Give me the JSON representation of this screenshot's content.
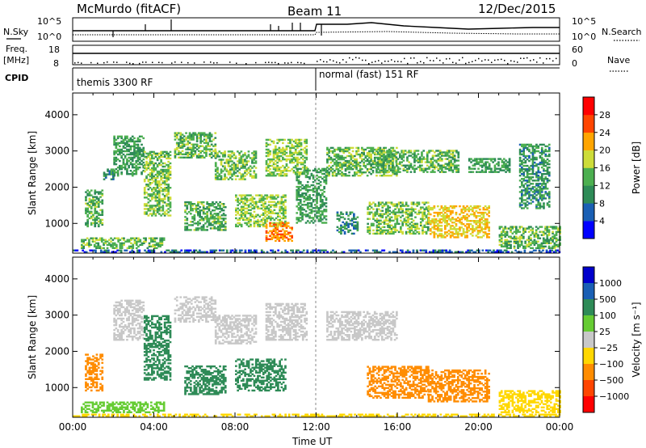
{
  "header": {
    "radar": "McMurdo (fitACF)",
    "beam": "Beam 11",
    "date": "12/Dec/2015"
  },
  "left_labels": {
    "nsky": "N.Sky",
    "freq": "Freq.",
    "mhz": "[MHz]",
    "cpid": "CPID"
  },
  "right_labels": {
    "nsearch": "N.Search",
    "nave": "Nave"
  },
  "noise_panel": {
    "left_top": "10^5",
    "left_bottom": "10^0",
    "right_top": "10^5",
    "right_bottom": "10^0"
  },
  "freq_panel": {
    "left_top": "18",
    "left_bottom": "8",
    "right_top": "60",
    "right_bottom": "0"
  },
  "cpid_panel": {
    "mode1": "themis 3300 RF",
    "mode2": "normal (fast) 151 RF"
  },
  "colors": {
    "power": [
      "#0000ff",
      "#1a5fb4",
      "#2e8b57",
      "#4caf50",
      "#cddc39",
      "#ffa500",
      "#ff4500",
      "#ff0000"
    ],
    "velocity": [
      "#ff0000",
      "#ff4500",
      "#ff8c00",
      "#ffd700",
      "#c8c8c8",
      "#66cc33",
      "#2e8b57",
      "#1a5fb4",
      "#0000cc"
    ]
  },
  "chart_data": [
    {
      "type": "heatmap",
      "panel": "power",
      "xlabel": "",
      "ylabel": "Slant Range [km]",
      "x_ticks": [],
      "y_ticks": [
        "1000",
        "2000",
        "3000",
        "4000"
      ],
      "ylim": [
        180,
        4600
      ],
      "xlim": [
        0,
        24
      ],
      "colorbar": {
        "label": "Power [dB]",
        "ticks": [
          "4",
          "8",
          "12",
          "16",
          "20",
          "24",
          "28"
        ],
        "range": [
          0,
          30
        ]
      },
      "regions": [
        {
          "t0": 0.4,
          "t1": 4.5,
          "r0": 300,
          "r1": 600,
          "v": 14
        },
        {
          "t0": 0.6,
          "t1": 1.5,
          "r0": 900,
          "r1": 1900,
          "v": 13
        },
        {
          "t0": 1.5,
          "t1": 2.0,
          "r0": 2200,
          "r1": 2500,
          "v": 10
        },
        {
          "t0": 2.0,
          "t1": 3.5,
          "r0": 2300,
          "r1": 3400,
          "v": 12
        },
        {
          "t0": 3.5,
          "t1": 4.8,
          "r0": 1200,
          "r1": 3000,
          "v": 15
        },
        {
          "t0": 5.0,
          "t1": 7.0,
          "r0": 2800,
          "r1": 3500,
          "v": 14
        },
        {
          "t0": 5.5,
          "t1": 7.5,
          "r0": 800,
          "r1": 1600,
          "v": 13
        },
        {
          "t0": 7.0,
          "t1": 9.0,
          "r0": 2200,
          "r1": 3000,
          "v": 15
        },
        {
          "t0": 8.0,
          "t1": 10.5,
          "r0": 900,
          "r1": 1800,
          "v": 16
        },
        {
          "t0": 9.5,
          "t1": 10.8,
          "r0": 500,
          "r1": 1000,
          "v": 24
        },
        {
          "t0": 9.5,
          "t1": 11.5,
          "r0": 2300,
          "r1": 3300,
          "v": 16
        },
        {
          "t0": 11.0,
          "t1": 12.5,
          "r0": 1000,
          "r1": 2500,
          "v": 12
        },
        {
          "t0": 12.5,
          "t1": 16.0,
          "r0": 2300,
          "r1": 3100,
          "v": 14
        },
        {
          "t0": 13.0,
          "t1": 14.0,
          "r0": 700,
          "r1": 1300,
          "v": 10
        },
        {
          "t0": 14.5,
          "t1": 17.5,
          "r0": 700,
          "r1": 1600,
          "v": 15
        },
        {
          "t0": 15.0,
          "t1": 19.0,
          "r0": 2400,
          "r1": 3000,
          "v": 14
        },
        {
          "t0": 17.5,
          "t1": 20.5,
          "r0": 600,
          "r1": 1500,
          "v": 20
        },
        {
          "t0": 19.5,
          "t1": 21.5,
          "r0": 2400,
          "r1": 2800,
          "v": 12
        },
        {
          "t0": 21.0,
          "t1": 24.0,
          "r0": 300,
          "r1": 900,
          "v": 14
        },
        {
          "t0": 22.0,
          "t1": 23.5,
          "r0": 1400,
          "r1": 3200,
          "v": 11
        },
        {
          "t0": 0.0,
          "t1": 24.0,
          "r0": 190,
          "r1": 270,
          "v": 6
        }
      ]
    },
    {
      "type": "heatmap",
      "panel": "velocity",
      "xlabel": "Time UT",
      "ylabel": "Slant Range [km]",
      "x_ticks": [
        "00:00",
        "04:00",
        "08:00",
        "12:00",
        "16:00",
        "20:00",
        "00:00"
      ],
      "y_ticks": [
        "1000",
        "2000",
        "3000",
        "4000"
      ],
      "ylim": [
        180,
        4600
      ],
      "xlim": [
        0,
        24
      ],
      "colorbar": {
        "label": "Velocity [m s⁻¹]",
        "ticks": [
          "1000",
          "500",
          "100",
          "25",
          "−25",
          "−100",
          "−500",
          "−1000"
        ],
        "range": [
          -1200,
          1200
        ]
      },
      "regions": [
        {
          "t0": 0.4,
          "t1": 4.5,
          "r0": 300,
          "r1": 600,
          "v": 60
        },
        {
          "t0": 0.6,
          "t1": 1.5,
          "r0": 900,
          "r1": 1900,
          "v": -300
        },
        {
          "t0": 2.0,
          "t1": 3.5,
          "r0": 2300,
          "r1": 3400,
          "v": 10
        },
        {
          "t0": 3.5,
          "t1": 4.8,
          "r0": 1200,
          "r1": 3000,
          "v": 300
        },
        {
          "t0": 5.0,
          "t1": 7.0,
          "r0": 2800,
          "r1": 3500,
          "v": 10
        },
        {
          "t0": 5.5,
          "t1": 7.5,
          "r0": 800,
          "r1": 1600,
          "v": 300
        },
        {
          "t0": 7.0,
          "t1": 9.0,
          "r0": 2200,
          "r1": 3000,
          "v": 10
        },
        {
          "t0": 8.0,
          "t1": 10.5,
          "r0": 900,
          "r1": 1800,
          "v": 300
        },
        {
          "t0": 9.5,
          "t1": 11.5,
          "r0": 2300,
          "r1": 3300,
          "v": 10
        },
        {
          "t0": 12.5,
          "t1": 16.0,
          "r0": 2300,
          "r1": 3100,
          "v": 10
        },
        {
          "t0": 14.5,
          "t1": 17.5,
          "r0": 700,
          "r1": 1600,
          "v": -300
        },
        {
          "t0": 17.5,
          "t1": 20.5,
          "r0": 600,
          "r1": 1500,
          "v": -300
        },
        {
          "t0": 21.0,
          "t1": 24.0,
          "r0": 300,
          "r1": 900,
          "v": -60
        },
        {
          "t0": 0.0,
          "t1": 24.0,
          "r0": 190,
          "r1": 270,
          "v": -40
        }
      ]
    }
  ]
}
